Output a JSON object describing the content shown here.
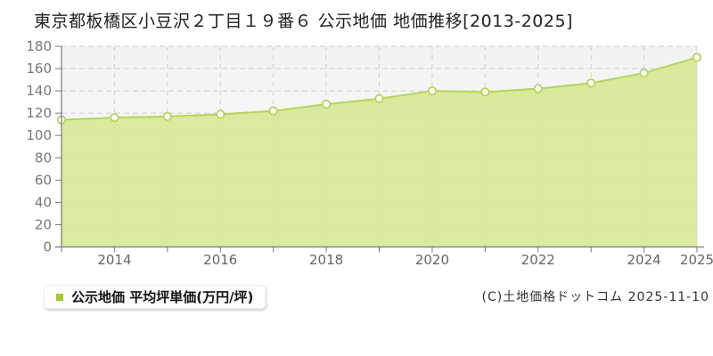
{
  "page": {
    "title": "東京都板橋区小豆沢２丁目１９番６ 公示地価 地価推移[2013-2025]",
    "copyright": "(C)土地価格ドットコム 2025-11-10"
  },
  "legend": {
    "label": "公示地価 平均坪単価(万円/坪)",
    "marker_color": "#a5c92f"
  },
  "chart_data": {
    "type": "area",
    "title": "東京都板橋区小豆沢２丁目１９番６ 公示地価 地価推移[2013-2025]",
    "x": [
      2013,
      2014,
      2015,
      2016,
      2017,
      2018,
      2019,
      2020,
      2021,
      2022,
      2023,
      2024,
      2025
    ],
    "series": [
      {
        "name": "公示地価 平均坪単価(万円/坪)",
        "values": [
          114,
          116,
          117,
          119,
          122,
          128,
          133,
          140,
          139,
          142,
          147,
          156,
          170
        ]
      }
    ],
    "xlabel": "",
    "ylabel": "",
    "unit": "万円/坪",
    "ylim": [
      0,
      180
    ],
    "y_ticks": [
      0,
      20,
      40,
      60,
      80,
      100,
      120,
      140,
      160,
      180
    ],
    "x_ticks_labeled": [
      "2014",
      "2016",
      "2018",
      "2020",
      "2022",
      "2024",
      "2025"
    ],
    "grid": "dashed",
    "legend_position": "bottom-left",
    "colors": {
      "area_fill": "#d6e893",
      "line": "#b7d45c",
      "marker_fill": "#ffffff",
      "grid": "#cfcfcf",
      "axis": "#7a7a7a",
      "y_tick_label": "#777777",
      "x_tick_label": "#666666",
      "plot_bg_top": "#f2f2f2",
      "plot_bg_bottom": "#ffffff",
      "right_border": "#d9d9d9"
    }
  }
}
